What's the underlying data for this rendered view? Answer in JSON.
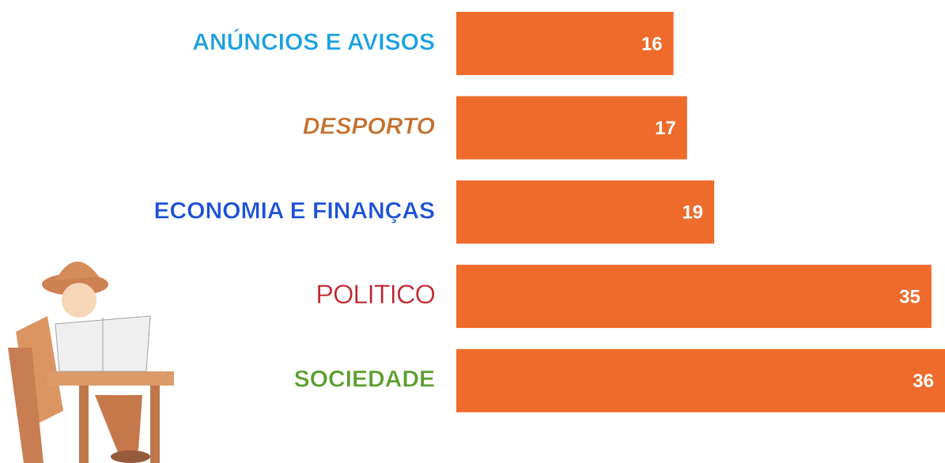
{
  "chart_data": {
    "type": "barh",
    "categories": [
      "ANÚNCIOS E AVISOS",
      "DESPORTO",
      "ECONOMIA E FINANÇAS",
      "POLITICO",
      "SOCIEDADE"
    ],
    "values": [
      16,
      17,
      19,
      35,
      36
    ],
    "color": "#ee6b2b",
    "label_colors": [
      "#1aa0e2",
      "#c4702c",
      "#1a50d8",
      "#c0222c",
      "#5a9e2c"
    ],
    "xlim": [
      0,
      36
    ]
  }
}
